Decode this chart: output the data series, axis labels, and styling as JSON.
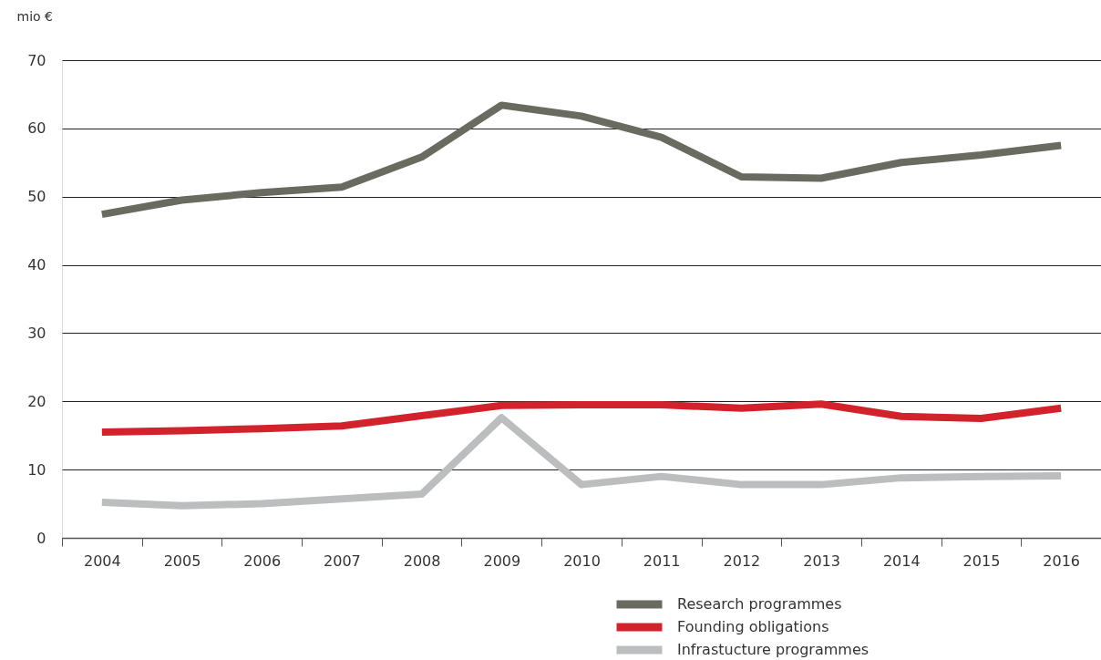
{
  "chart_data": {
    "type": "line",
    "ylabel": "mio €",
    "categories": [
      "2004",
      "2005",
      "2006",
      "2007",
      "2008",
      "2009",
      "2010",
      "2011",
      "2012",
      "2013",
      "2014",
      "2015",
      "2016"
    ],
    "series": [
      {
        "name": "Research programmes",
        "color": "#6a6b60",
        "values": [
          47.4,
          49.5,
          50.6,
          51.4,
          55.8,
          63.4,
          61.8,
          58.7,
          52.9,
          52.7,
          55.0,
          56.1,
          57.5
        ]
      },
      {
        "name": "Founding obligations",
        "color": "#d2222c",
        "values": [
          15.5,
          15.7,
          16.0,
          16.4,
          17.9,
          19.4,
          19.5,
          19.5,
          19.0,
          19.6,
          17.8,
          17.5,
          19.0
        ]
      },
      {
        "name": "Infrastucture programmes",
        "color": "#bcbdbf",
        "values": [
          5.2,
          4.7,
          5.0,
          5.7,
          6.4,
          17.6,
          7.8,
          9.0,
          7.8,
          7.8,
          8.8,
          9.0,
          9.1
        ]
      }
    ],
    "ylim": [
      0,
      70
    ],
    "yticks": [
      0,
      10,
      20,
      30,
      40,
      50,
      60,
      70
    ],
    "grid": "y",
    "legend": "bottom",
    "line_style": "solid"
  }
}
